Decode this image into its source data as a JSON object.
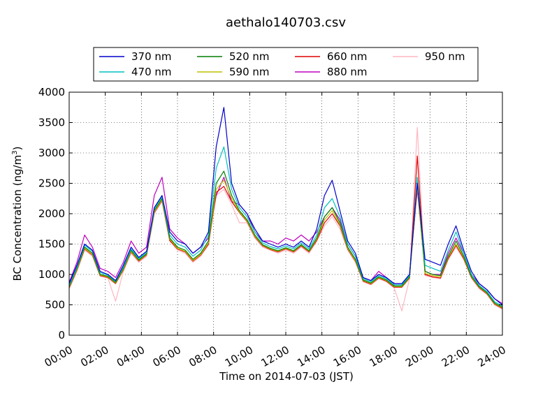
{
  "chart_data": {
    "type": "line",
    "title": "aethalo140703.csv",
    "xlabel": "Time on 2014-07-03 (JST)",
    "ylabel": {
      "base": "BC Concentration (ng/m",
      "sup": "3",
      "close": ")"
    },
    "xlim": [
      0,
      24
    ],
    "ylim": [
      0,
      4000
    ],
    "yticks": [
      0,
      500,
      1000,
      1500,
      2000,
      2500,
      3000,
      3500,
      4000
    ],
    "xticks": [
      0,
      2,
      4,
      6,
      8,
      10,
      12,
      14,
      16,
      18,
      20,
      22,
      24
    ],
    "xtick_labels": [
      "00:00",
      "02:00",
      "04:00",
      "06:00",
      "08:00",
      "10:00",
      "12:00",
      "14:00",
      "16:00",
      "18:00",
      "20:00",
      "22:00",
      "24:00"
    ],
    "grid": true,
    "legend": "top-center",
    "colors": {
      "370 nm": "#0000cc",
      "470 nm": "#00bfbf",
      "520 nm": "#007f00",
      "590 nm": "#bfbf00",
      "660 nm": "#dd0000",
      "880 nm": "#bf00bf",
      "950 nm": "#ffb6c1"
    },
    "series": [
      {
        "name": "370 nm",
        "values": [
          850,
          1150,
          1500,
          1400,
          1050,
          1000,
          900,
          1150,
          1450,
          1280,
          1380,
          2100,
          2300,
          1700,
          1550,
          1500,
          1350,
          1450,
          1700,
          3100,
          3750,
          2500,
          2150,
          2000,
          1750,
          1550,
          1500,
          1450,
          1500,
          1450,
          1550,
          1450,
          1750,
          2300,
          2550,
          2050,
          1550,
          1350,
          950,
          900,
          1000,
          950,
          850,
          850,
          1000,
          2500,
          1250,
          1200,
          1150,
          1500,
          1800,
          1400,
          1050,
          850,
          750,
          600,
          500
        ]
      },
      {
        "name": "470 nm",
        "values": [
          820,
          1120,
          1480,
          1380,
          1030,
          990,
          890,
          1120,
          1420,
          1260,
          1360,
          2080,
          2280,
          1650,
          1500,
          1450,
          1300,
          1400,
          1650,
          2750,
          3100,
          2400,
          2100,
          1950,
          1700,
          1520,
          1460,
          1420,
          1470,
          1420,
          1520,
          1420,
          1650,
          2100,
          2250,
          1950,
          1500,
          1300,
          930,
          880,
          980,
          930,
          830,
          830,
          980,
          2600,
          1150,
          1100,
          1050,
          1400,
          1700,
          1350,
          1000,
          820,
          720,
          550,
          480
        ]
      },
      {
        "name": "520 nm",
        "values": [
          800,
          1100,
          1450,
          1350,
          1000,
          970,
          870,
          1100,
          1400,
          1240,
          1340,
          2050,
          2250,
          1600,
          1450,
          1400,
          1250,
          1350,
          1550,
          2500,
          2700,
          2300,
          2050,
          1900,
          1650,
          1490,
          1430,
          1390,
          1440,
          1390,
          1490,
          1390,
          1600,
          1950,
          2100,
          1850,
          1450,
          1250,
          910,
          860,
          960,
          910,
          810,
          810,
          960,
          2550,
          1050,
          1000,
          980,
          1300,
          1550,
          1300,
          970,
          800,
          700,
          530,
          460
        ]
      },
      {
        "name": "590 nm",
        "values": [
          790,
          1080,
          1430,
          1330,
          990,
          960,
          860,
          1080,
          1380,
          1230,
          1330,
          2030,
          2230,
          1580,
          1430,
          1380,
          1230,
          1330,
          1520,
          2400,
          2550,
          2250,
          2030,
          1880,
          1630,
          1480,
          1420,
          1380,
          1430,
          1380,
          1480,
          1380,
          1580,
          1900,
          2050,
          1820,
          1430,
          1230,
          900,
          850,
          950,
          900,
          800,
          800,
          950,
          2450,
          1020,
          980,
          960,
          1280,
          1500,
          1280,
          960,
          790,
          690,
          520,
          450
        ]
      },
      {
        "name": "660 nm",
        "values": [
          780,
          1070,
          1420,
          1320,
          980,
          950,
          850,
          1070,
          1370,
          1220,
          1320,
          2020,
          2220,
          1560,
          1420,
          1370,
          1220,
          1320,
          1500,
          2350,
          2450,
          2200,
          2020,
          1870,
          1620,
          1470,
          1410,
          1370,
          1420,
          1370,
          1470,
          1370,
          1560,
          1850,
          2000,
          1800,
          1420,
          1220,
          890,
          840,
          940,
          890,
          790,
          790,
          940,
          2950,
          1000,
          960,
          940,
          1260,
          1480,
          1260,
          950,
          780,
          680,
          510,
          440
        ]
      },
      {
        "name": "880 nm",
        "values": [
          870,
          1200,
          1650,
          1450,
          1100,
          1050,
          950,
          1200,
          1550,
          1350,
          1450,
          2300,
          2600,
          1750,
          1600,
          1500,
          1350,
          1450,
          1600,
          2300,
          2600,
          2200,
          2150,
          2000,
          1700,
          1550,
          1550,
          1500,
          1600,
          1550,
          1650,
          1550,
          1700,
          1950,
          2100,
          1900,
          1500,
          1300,
          950,
          900,
          1050,
          950,
          850,
          850,
          1000,
          2400,
          1050,
          1000,
          1000,
          1350,
          1600,
          1350,
          1000,
          850,
          750,
          600,
          520
        ]
      },
      {
        "name": "950 nm",
        "values": [
          760,
          1050,
          1400,
          1300,
          970,
          940,
          560,
          1050,
          1350,
          1200,
          1300,
          2000,
          2200,
          1550,
          1400,
          1350,
          1200,
          1300,
          1480,
          2300,
          2400,
          2150,
          1850,
          1850,
          1600,
          1450,
          1400,
          1350,
          1400,
          1350,
          1450,
          1350,
          1550,
          1800,
          1950,
          1750,
          1400,
          1200,
          880,
          830,
          930,
          880,
          780,
          400,
          930,
          3420,
          980,
          950,
          930,
          1250,
          1450,
          1250,
          940,
          770,
          670,
          500,
          430
        ]
      }
    ]
  }
}
